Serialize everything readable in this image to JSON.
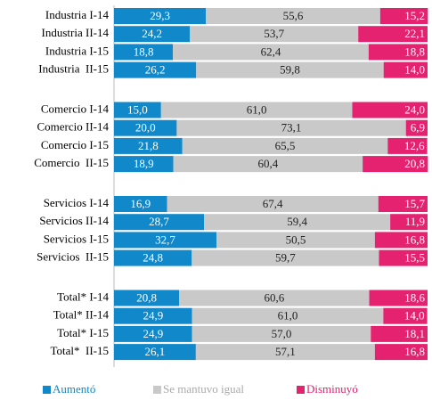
{
  "chart_data": {
    "type": "stacked-bar-horizontal",
    "categories": [
      "Industria I-14",
      "Industria II-14",
      "Industria I-15",
      "Industria  II-15",
      "Comercio I-14",
      "Comercio II-14",
      "Comercio I-15",
      "Comercio  II-15",
      "Servicios I-14",
      "Servicios II-14",
      "Servicios I-15",
      "Servicios  II-15",
      "Total* I-14",
      "Total* II-14",
      "Total* I-15",
      "Total*  II-15"
    ],
    "series": [
      {
        "name": "Aumentó",
        "color": "#1188c9",
        "values": [
          29.3,
          24.2,
          18.8,
          26.2,
          15.0,
          20.0,
          21.8,
          18.9,
          16.9,
          28.7,
          32.7,
          24.8,
          20.8,
          24.9,
          24.9,
          26.1
        ],
        "value_labels": [
          "29,3",
          "24,2",
          "18,8",
          "26,2",
          "15,0",
          "20,0",
          "21,8",
          "18,9",
          "16,9",
          "28,7",
          "32,7",
          "24,8",
          "20,8",
          "24,9",
          "24,9",
          "26,1"
        ]
      },
      {
        "name": "Se mantuvo igual",
        "color": "#c9c9c9",
        "values": [
          55.6,
          53.7,
          62.4,
          59.8,
          61.0,
          73.1,
          65.5,
          60.4,
          67.4,
          59.4,
          50.5,
          59.7,
          60.6,
          61.0,
          57.0,
          57.1
        ],
        "value_labels": [
          "55,6",
          "53,7",
          "62,4",
          "59,8",
          "61,0",
          "73,1",
          "65,5",
          "60,4",
          "67,4",
          "59,4",
          "50,5",
          "59,7",
          "60,6",
          "61,0",
          "57,0",
          "57,1"
        ]
      },
      {
        "name": "Disminuyó",
        "color": "#e5226f",
        "values": [
          15.2,
          22.1,
          18.8,
          14.0,
          24.0,
          6.9,
          12.6,
          20.8,
          15.7,
          11.9,
          16.8,
          15.5,
          18.6,
          14.0,
          18.1,
          16.8
        ],
        "value_labels": [
          "15,2",
          "22,1",
          "18,8",
          "14,0",
          "24,0",
          "6,9",
          "12,6",
          "20,8",
          "15,7",
          "11,9",
          "16,8",
          "15,5",
          "18,6",
          "14,0",
          "18,1",
          "16,8"
        ]
      }
    ],
    "xlim": [
      0,
      100
    ]
  }
}
